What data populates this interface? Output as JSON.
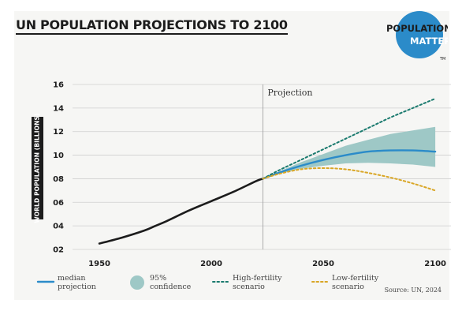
{
  "header": {
    "title": "UN POPULATION PROJECTIONS TO 2100",
    "logo_line1": "POPULATION",
    "logo_line2": "MATTERS",
    "logo_tm": "TM"
  },
  "source": "Source: UN, 2024",
  "chart_data": {
    "type": "line",
    "title": "UN POPULATION PROJECTIONS TO 2100",
    "ylabel": "WORLD POPULATION (BILLIONS)",
    "xlabel": "",
    "xlim": [
      1938,
      2107
    ],
    "ylim": [
      2,
      16
    ],
    "x_ticks": [
      1950,
      2000,
      2050,
      2100
    ],
    "x_tick_labels": [
      "1950",
      "2000",
      "2050",
      "2100"
    ],
    "y_ticks": [
      2,
      4,
      6,
      8,
      10,
      12,
      14,
      16
    ],
    "y_tick_labels": [
      "02",
      "04",
      "06",
      "08",
      "10",
      "12",
      "14",
      "16"
    ],
    "grid": "horizontal",
    "projection_start": 2023,
    "annotations": [
      {
        "text": "Projection",
        "x": 2023
      }
    ],
    "colors": {
      "historical": "#1c1c1c",
      "median": "#2b8bc9",
      "confidence": "#9ec8c6",
      "high": "#1a7a6e",
      "low": "#d9a625",
      "grid": "#cfcfcf"
    },
    "series": [
      {
        "key": "historical",
        "x": [
          1950,
          1960,
          1970,
          1975,
          1980,
          1990,
          2000,
          2010,
          2020,
          2023
        ],
        "y": [
          2.5,
          3.0,
          3.6,
          4.0,
          4.4,
          5.3,
          6.1,
          6.9,
          7.8,
          8.0
        ]
      },
      {
        "key": "median",
        "name": "median projection",
        "x": [
          2023,
          2030,
          2040,
          2050,
          2060,
          2070,
          2080,
          2090,
          2100
        ],
        "y": [
          8.0,
          8.5,
          9.1,
          9.6,
          10.0,
          10.3,
          10.4,
          10.4,
          10.3
        ]
      },
      {
        "key": "high",
        "name": "High-fertility scenario",
        "x": [
          2023,
          2030,
          2040,
          2050,
          2060,
          2070,
          2080,
          2090,
          2100
        ],
        "y": [
          8.0,
          8.7,
          9.6,
          10.5,
          11.4,
          12.3,
          13.2,
          14.0,
          14.8
        ]
      },
      {
        "key": "low",
        "name": "Low-fertility scenario",
        "x": [
          2023,
          2030,
          2040,
          2050,
          2060,
          2070,
          2080,
          2090,
          2100
        ],
        "y": [
          8.0,
          8.4,
          8.8,
          8.9,
          8.8,
          8.5,
          8.1,
          7.6,
          7.0
        ]
      }
    ],
    "confidence_band": {
      "name": "95% confidence",
      "x": [
        2023,
        2030,
        2040,
        2050,
        2060,
        2070,
        2080,
        2090,
        2100
      ],
      "lower": [
        8.0,
        8.4,
        8.85,
        9.1,
        9.3,
        9.35,
        9.3,
        9.2,
        9.0
      ],
      "upper": [
        8.0,
        8.6,
        9.4,
        10.1,
        10.8,
        11.3,
        11.8,
        12.1,
        12.4
      ]
    },
    "legend": [
      {
        "key": "median",
        "lines": [
          "median",
          "projection"
        ]
      },
      {
        "key": "confidence",
        "lines": [
          "95%",
          "confidence"
        ]
      },
      {
        "key": "high",
        "lines": [
          "High-fertility",
          "scenario"
        ]
      },
      {
        "key": "low",
        "lines": [
          "Low-fertility",
          "scenario"
        ]
      }
    ],
    "legend_position": "bottom"
  }
}
